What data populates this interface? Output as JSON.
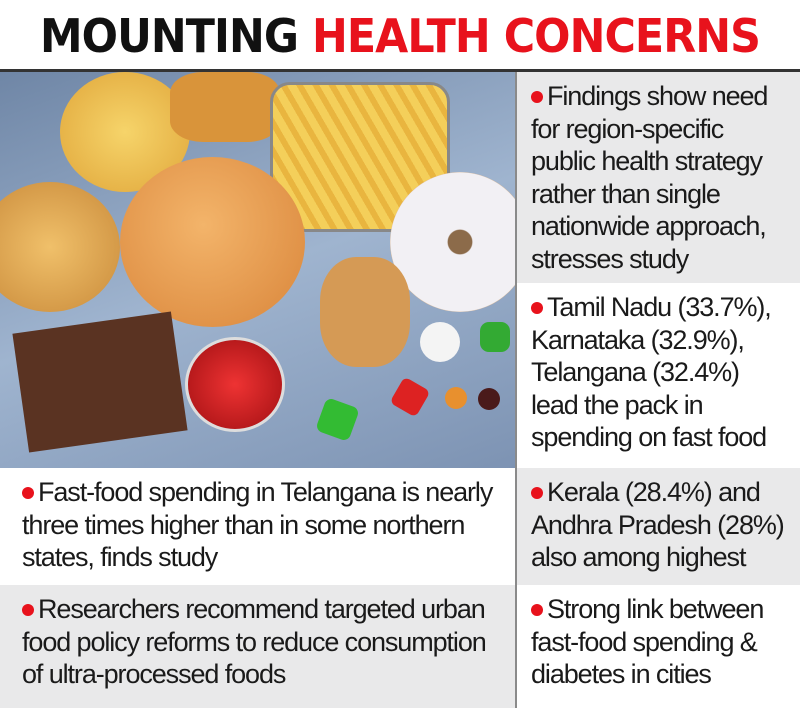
{
  "title": {
    "part1": "MOUNTING",
    "part2": "HEALTH CONCERNS"
  },
  "colors": {
    "accent": "#e8121c",
    "text": "#1a1a1a",
    "gray_cell": "#e9e9ea"
  },
  "image": {
    "subject": "fast-food-photo"
  },
  "left_items": [
    {
      "text": "Fast-food spending in Telangana is nearly three times higher than in some northern states, finds study"
    },
    {
      "text": "Researchers recommend targeted urban food policy reforms to reduce consumption of ultra-processed foods"
    }
  ],
  "right_items": [
    {
      "text": "Findings show need for region-specific public health strategy rather than single nationwide approach, stresses study"
    },
    {
      "text": "Tamil Nadu (33.7%), Karnataka (32.9%), Telangana (32.4%) lead the pack in spending on fast food"
    },
    {
      "text": "Kerala (28.4%) and Andhra Pradesh (28%) also among highest"
    },
    {
      "text": "Strong link between fast-food spending & diabetes in cities"
    }
  ]
}
